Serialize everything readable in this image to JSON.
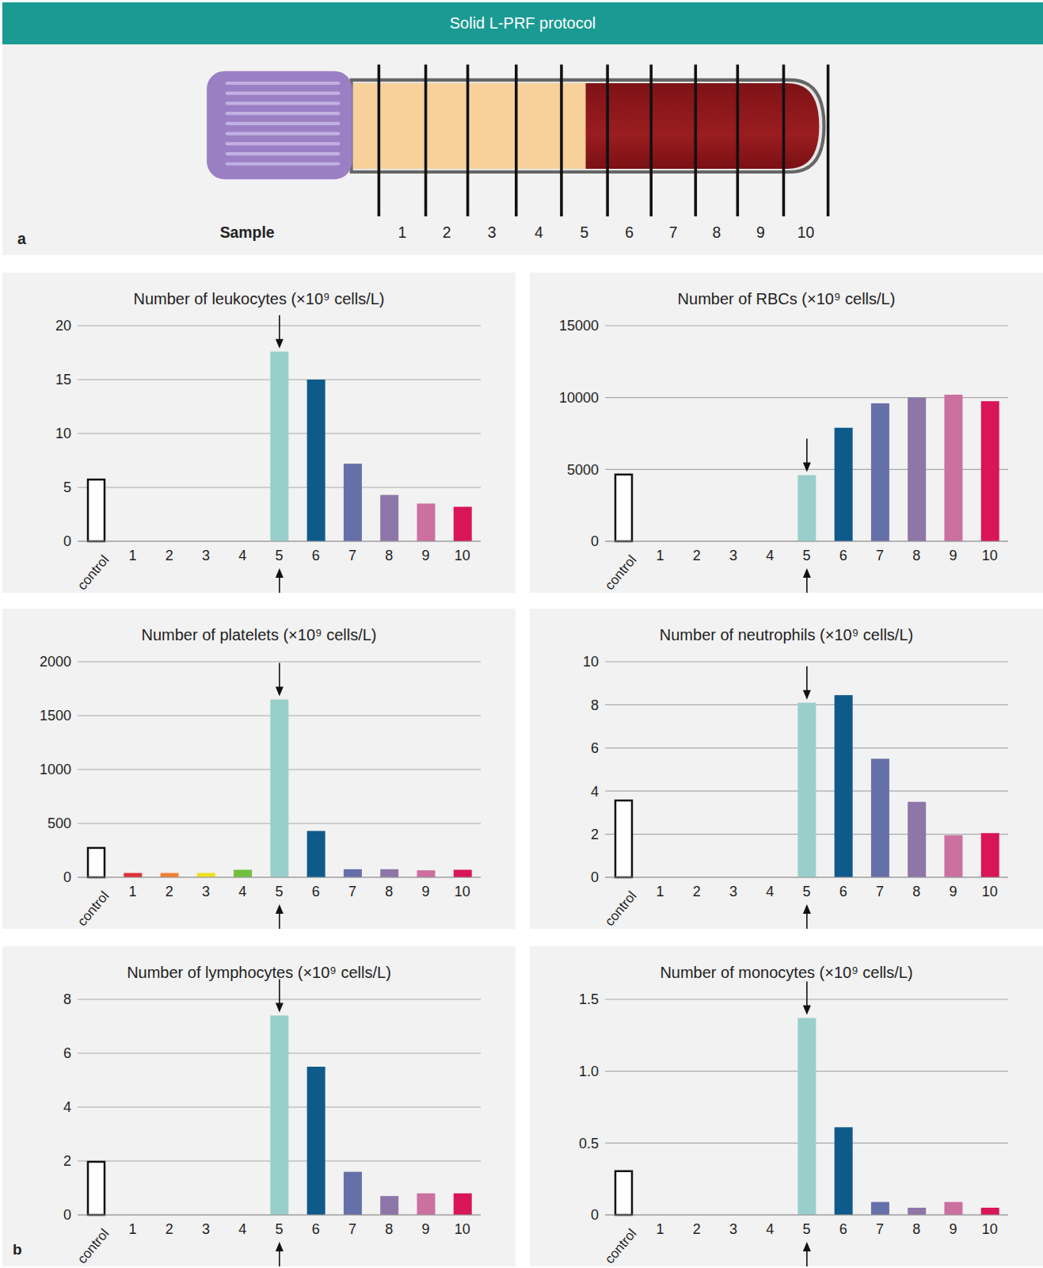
{
  "header": "Solid L-PRF protocol",
  "diagram": {
    "panel_label": "a",
    "sample_label": "Sample",
    "samples": [
      "1",
      "2",
      "3",
      "4",
      "5",
      "6",
      "7",
      "8",
      "9",
      "10"
    ]
  },
  "panel_b_label": "b",
  "chart_data": [
    {
      "type": "bar",
      "title": "Number of leukocytes (×10⁹ cells/L)",
      "categories": [
        "control",
        "1",
        "2",
        "3",
        "4",
        "5",
        "6",
        "7",
        "8",
        "9",
        "10"
      ],
      "values": [
        5.8,
        0,
        0,
        0,
        0,
        17.6,
        15.0,
        7.2,
        4.3,
        3.5,
        3.2
      ],
      "colors": [
        "#ffffff",
        "#e0303a",
        "#f08030",
        "#f0e020",
        "#70c040",
        "#99cfcb",
        "#0e5a8a",
        "#6670a8",
        "#8e76a8",
        "#cc70a0",
        "#d81558"
      ],
      "ylim": [
        0,
        20
      ],
      "yticks": [
        0,
        5,
        10,
        15,
        20
      ],
      "grid": true
    },
    {
      "type": "bar",
      "title": "Number of RBCs (×10⁹ cells/L)",
      "categories": [
        "control",
        "1",
        "2",
        "3",
        "4",
        "5",
        "6",
        "7",
        "8",
        "9",
        "10"
      ],
      "values": [
        4700,
        0,
        0,
        0,
        0,
        4600,
        7900,
        9600,
        10000,
        10200,
        9750
      ],
      "colors": [
        "#ffffff",
        "#e0303a",
        "#f08030",
        "#f0e020",
        "#70c040",
        "#99cfcb",
        "#0e5a8a",
        "#6670a8",
        "#8e76a8",
        "#cc70a0",
        "#d81558"
      ],
      "ylim": [
        0,
        15000
      ],
      "yticks": [
        0,
        5000,
        10000,
        15000
      ],
      "grid": true
    },
    {
      "type": "bar",
      "title": "Number of platelets (×10⁹ cells/L)",
      "categories": [
        "control",
        "1",
        "2",
        "3",
        "4",
        "5",
        "6",
        "7",
        "8",
        "9",
        "10"
      ],
      "values": [
        280,
        40,
        40,
        40,
        70,
        1650,
        430,
        75,
        75,
        65,
        70
      ],
      "colors": [
        "#ffffff",
        "#e0303a",
        "#f08030",
        "#f0e020",
        "#70c040",
        "#99cfcb",
        "#0e5a8a",
        "#6670a8",
        "#8e76a8",
        "#cc70a0",
        "#d81558"
      ],
      "ylim": [
        0,
        2000
      ],
      "yticks": [
        0,
        500,
        1000,
        1500,
        2000
      ],
      "grid": true
    },
    {
      "type": "bar",
      "title": "Number of neutrophils (×10⁹ cells/L)",
      "categories": [
        "control",
        "1",
        "2",
        "3",
        "4",
        "5",
        "6",
        "7",
        "8",
        "9",
        "10"
      ],
      "values": [
        3.6,
        0,
        0,
        0,
        0,
        8.1,
        8.45,
        5.5,
        3.5,
        1.95,
        2.05
      ],
      "colors": [
        "#ffffff",
        "#e0303a",
        "#f08030",
        "#f0e020",
        "#70c040",
        "#99cfcb",
        "#0e5a8a",
        "#6670a8",
        "#8e76a8",
        "#cc70a0",
        "#d81558"
      ],
      "ylim": [
        0,
        10
      ],
      "yticks": [
        0,
        2,
        4,
        6,
        8,
        10
      ],
      "grid": true
    },
    {
      "type": "bar",
      "title": "Number of lymphocytes (×10⁹ cells/L)",
      "categories": [
        "control",
        "1",
        "2",
        "3",
        "4",
        "5",
        "6",
        "7",
        "8",
        "9",
        "10"
      ],
      "values": [
        2.0,
        0,
        0,
        0,
        0,
        7.4,
        5.5,
        1.6,
        0.7,
        0.8,
        0.8
      ],
      "colors": [
        "#ffffff",
        "#e0303a",
        "#f08030",
        "#f0e020",
        "#70c040",
        "#99cfcb",
        "#0e5a8a",
        "#6670a8",
        "#8e76a8",
        "#cc70a0",
        "#d81558"
      ],
      "ylim": [
        0,
        8
      ],
      "yticks": [
        0,
        2,
        4,
        6,
        8
      ],
      "grid": true
    },
    {
      "type": "bar",
      "title": "Number of monocytes (×10⁹ cells/L)",
      "categories": [
        "control",
        "1",
        "2",
        "3",
        "4",
        "5",
        "6",
        "7",
        "8",
        "9",
        "10"
      ],
      "values": [
        0.31,
        0,
        0,
        0,
        0,
        1.37,
        0.61,
        0.09,
        0.05,
        0.09,
        0.05
      ],
      "colors": [
        "#ffffff",
        "#e0303a",
        "#f08030",
        "#f0e020",
        "#70c040",
        "#99cfcb",
        "#0e5a8a",
        "#6670a8",
        "#8e76a8",
        "#cc70a0",
        "#d81558"
      ],
      "ylim": [
        0,
        1.5
      ],
      "yticks": [
        0,
        0.5,
        {
          "value": 1,
          "label": "1.0"
        },
        1.5
      ],
      "grid": true
    }
  ]
}
